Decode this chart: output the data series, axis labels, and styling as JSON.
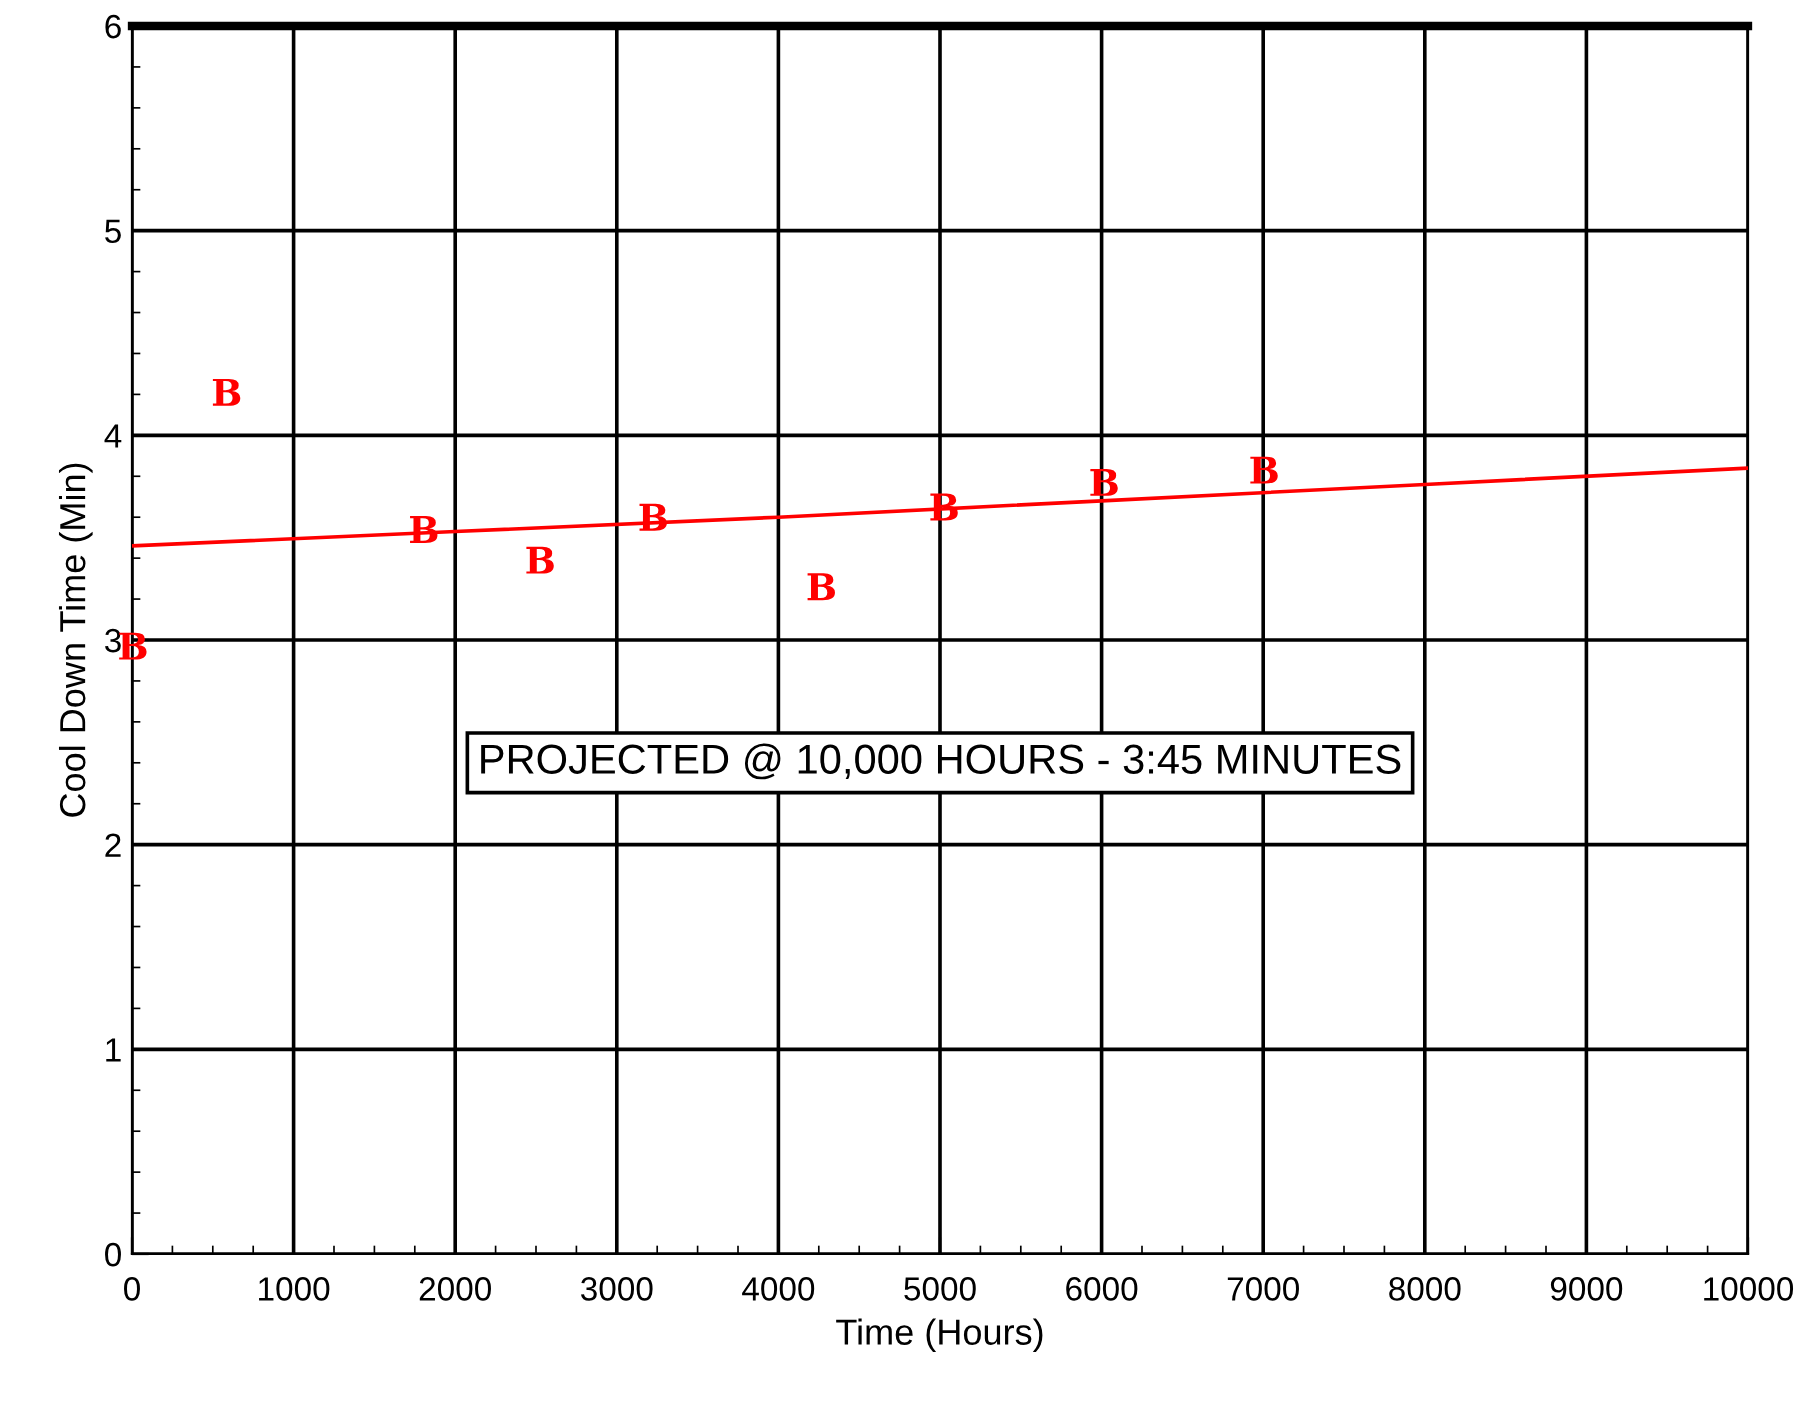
{
  "chart_data": {
    "type": "scatter",
    "xlabel": "Time (Hours)",
    "ylabel": "Cool Down Time (Min)",
    "xlim": [
      0,
      10000
    ],
    "ylim": [
      0,
      6
    ],
    "xticks": [
      0,
      1000,
      2000,
      3000,
      4000,
      5000,
      6000,
      7000,
      8000,
      9000,
      10000
    ],
    "yticks": [
      0,
      1,
      2,
      3,
      4,
      5,
      6
    ],
    "grid": true,
    "series": [
      {
        "type": "line",
        "color": "#ff0000",
        "x": [
          0,
          2000,
          4000,
          6000,
          8000,
          10000
        ],
        "values": [
          3.46,
          3.53,
          3.6,
          3.68,
          3.76,
          3.84
        ]
      },
      {
        "color": "#ff0000",
        "x": [
          0,
          580,
          1800,
          2520,
          3220,
          4260,
          5020,
          6010,
          7000
        ],
        "values": [
          2.97,
          4.21,
          3.54,
          3.39,
          3.6,
          3.26,
          3.65,
          3.77,
          3.83
        ]
      }
    ],
    "annotations": [
      "PROJECTED @ 10,000 HOURS - 3:45 MINUTES"
    ]
  }
}
